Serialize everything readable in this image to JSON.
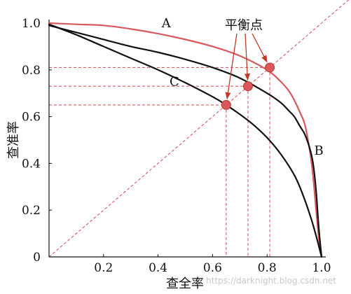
{
  "chart_data": {
    "type": "line",
    "xlabel": "查全率",
    "ylabel": "查准率",
    "xlim": [
      0,
      1.0
    ],
    "ylim": [
      0,
      1.0
    ],
    "x_ticks": [
      {
        "v": 0,
        "label": "0"
      },
      {
        "v": 0.2,
        "label": "0.2"
      },
      {
        "v": 0.4,
        "label": "0.4"
      },
      {
        "v": 0.6,
        "label": "0.6"
      },
      {
        "v": 0.8,
        "label": "0.8"
      },
      {
        "v": 1.0,
        "label": "1.0"
      }
    ],
    "y_ticks": [
      {
        "v": 0.2,
        "label": "0.2"
      },
      {
        "v": 0.4,
        "label": "0.4"
      },
      {
        "v": 0.6,
        "label": "0.6"
      },
      {
        "v": 0.8,
        "label": "0.8"
      },
      {
        "v": 1.0,
        "label": "1.0"
      }
    ],
    "grid": false,
    "series": [
      {
        "name": "A",
        "color": "#d9585c",
        "x": [
          0,
          0.1,
          0.2,
          0.3,
          0.4,
          0.5,
          0.6,
          0.7,
          0.8,
          0.85,
          0.88,
          0.9,
          0.92,
          0.94,
          0.96,
          0.97,
          0.98,
          0.99,
          1.0
        ],
        "y": [
          1.0,
          0.995,
          0.99,
          0.975,
          0.955,
          0.93,
          0.9,
          0.86,
          0.8,
          0.75,
          0.71,
          0.67,
          0.62,
          0.56,
          0.43,
          0.33,
          0.2,
          0.08,
          0
        ]
      },
      {
        "name": "B",
        "color": "#111111",
        "x": [
          0,
          0.1,
          0.2,
          0.3,
          0.4,
          0.5,
          0.6,
          0.7,
          0.8,
          0.85,
          0.88,
          0.9,
          0.92,
          0.94,
          0.96,
          0.97,
          0.98,
          0.99,
          1.0
        ],
        "y": [
          0.99,
          0.96,
          0.93,
          0.9,
          0.875,
          0.845,
          0.81,
          0.765,
          0.7,
          0.66,
          0.625,
          0.6,
          0.56,
          0.52,
          0.45,
          0.39,
          0.28,
          0.12,
          0
        ]
      },
      {
        "name": "C",
        "color": "#111111",
        "x": [
          0,
          0.1,
          0.2,
          0.3,
          0.4,
          0.5,
          0.6,
          0.65,
          0.7,
          0.75,
          0.8,
          0.85,
          0.9,
          0.93,
          0.96,
          0.98,
          1.0
        ],
        "y": [
          0.995,
          0.95,
          0.9,
          0.85,
          0.8,
          0.745,
          0.685,
          0.65,
          0.61,
          0.565,
          0.51,
          0.44,
          0.35,
          0.27,
          0.17,
          0.09,
          0
        ]
      }
    ],
    "curve_labels": [
      {
        "series": "A",
        "text": "A",
        "x": 0.43,
        "y": 1.0
      },
      {
        "series": "B",
        "text": "B",
        "x": 0.99,
        "y": 0.455
      },
      {
        "series": "C",
        "text": "C",
        "x": 0.46,
        "y": 0.75
      }
    ],
    "break_even_points": [
      {
        "series": "C",
        "x": 0.65,
        "y": 0.65
      },
      {
        "series": "B",
        "x": 0.73,
        "y": 0.73
      },
      {
        "series": "A",
        "x": 0.81,
        "y": 0.81
      }
    ],
    "annotation": "平衡点",
    "reference_line": {
      "from": [
        0,
        0
      ],
      "to": [
        1.1,
        1.1
      ],
      "style": "dashed",
      "color": "#d9585c"
    },
    "watermark": "https://darknight.blog.csdn.net"
  }
}
